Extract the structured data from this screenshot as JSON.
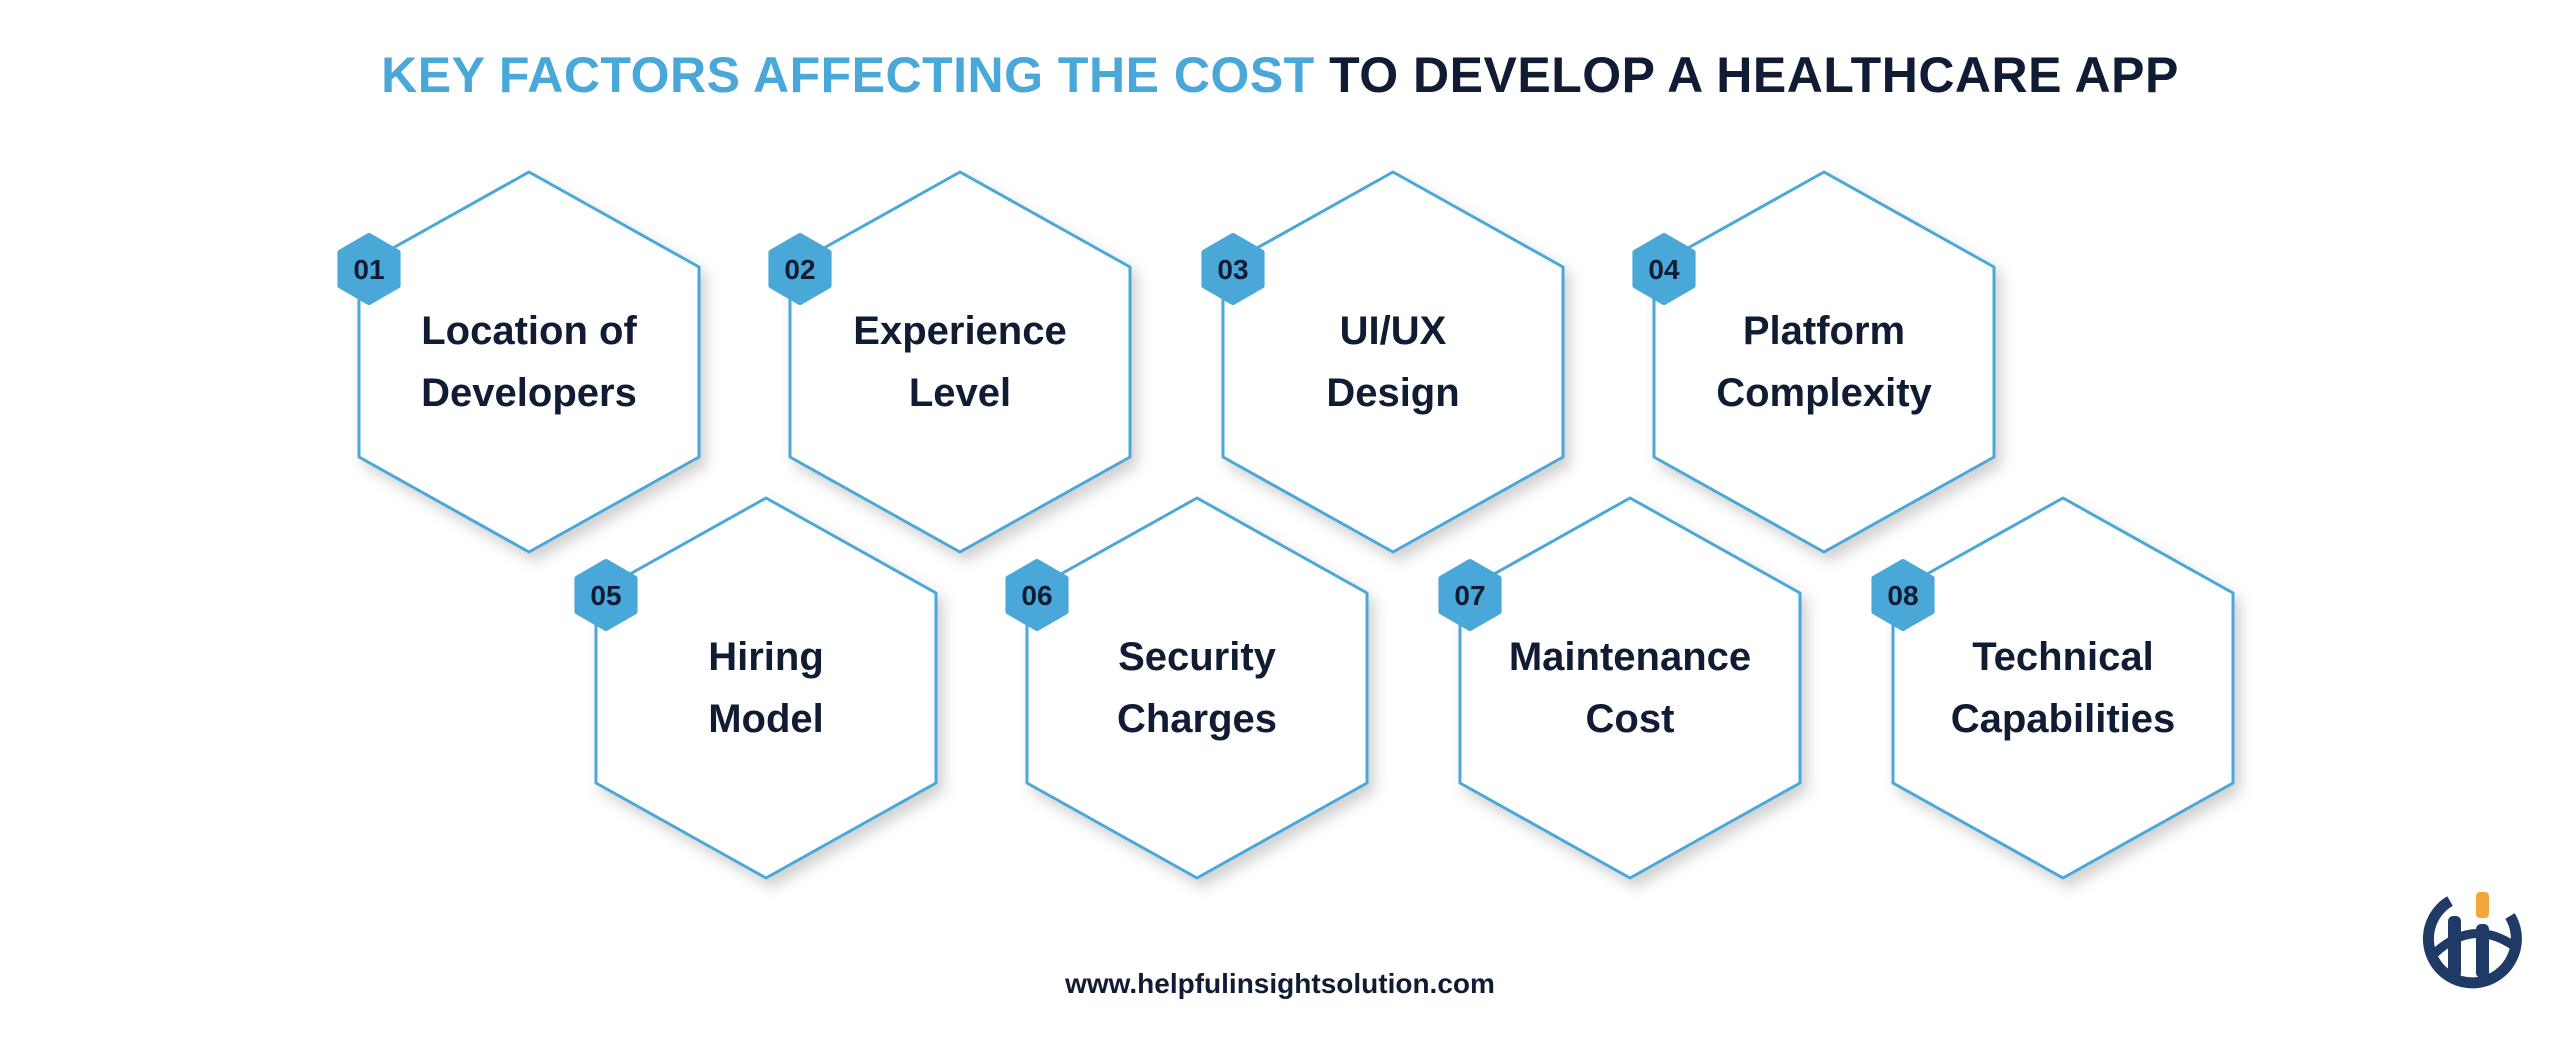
{
  "title": {
    "accent": "KEY FACTORS AFFECTING THE COST",
    "rest": " TO DEVELOP A HEALTHCARE APP"
  },
  "colors": {
    "accent": "#4aa8d8",
    "text": "#0f1c33",
    "logo_navy": "#1f3a64",
    "logo_orange": "#f0a83a"
  },
  "factors": [
    {
      "number": "01",
      "lines": [
        "Location of",
        "Developers"
      ]
    },
    {
      "number": "02",
      "lines": [
        "Experience",
        "Level"
      ]
    },
    {
      "number": "03",
      "lines": [
        "UI/UX",
        "Design"
      ]
    },
    {
      "number": "04",
      "lines": [
        "Platform",
        "Complexity"
      ]
    },
    {
      "number": "05",
      "lines": [
        "Hiring",
        "Model"
      ]
    },
    {
      "number": "06",
      "lines": [
        "Security",
        "Charges"
      ]
    },
    {
      "number": "07",
      "lines": [
        "Maintenance",
        "Cost"
      ]
    },
    {
      "number": "08",
      "lines": [
        "Technical",
        "Capabilities"
      ]
    }
  ],
  "footer": {
    "url": "www.helpfulinsightsolution.com"
  },
  "logo": {
    "text": "HI",
    "icon": "helpful-insight-logo"
  }
}
